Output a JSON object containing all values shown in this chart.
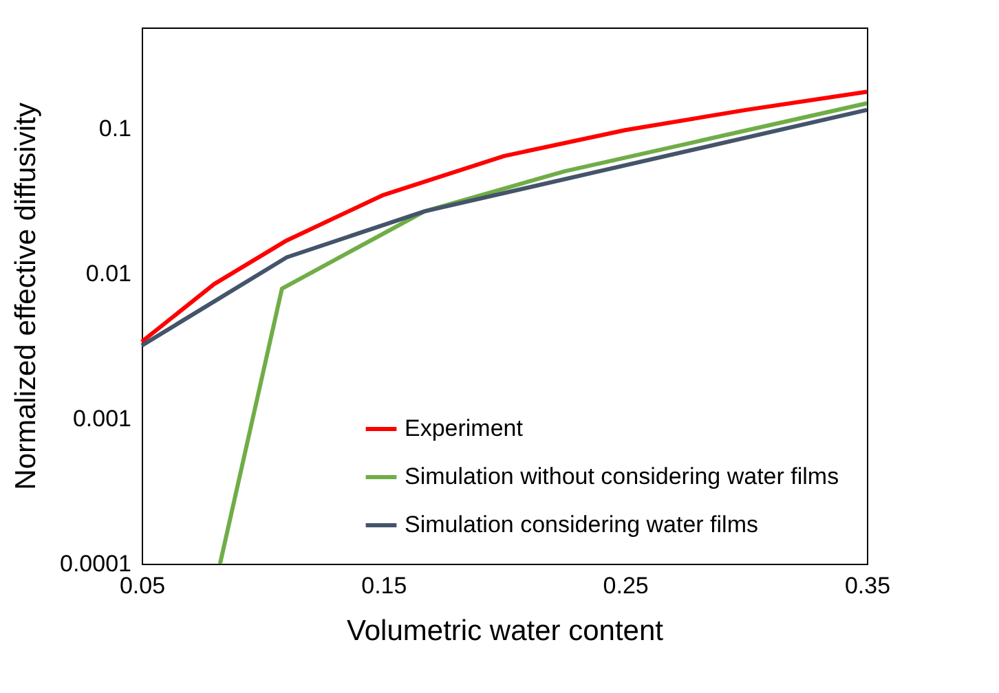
{
  "chart_data": {
    "type": "line",
    "xlabel": "Volumetric water content",
    "ylabel": "Normalized effective diffusivity",
    "log": "y",
    "grid": false,
    "legend": "bottom right",
    "marker": "none",
    "line_style": "solid",
    "xlim": [
      0.05,
      0.35
    ],
    "xticks": [
      0.05,
      0.15,
      0.25,
      0.35
    ],
    "ylim": [
      0.0001,
      0.5
    ],
    "yticks": [
      0.0001,
      0.001,
      0.01,
      0.1
    ],
    "series": [
      {
        "name": "Experiment",
        "color": "#ff0000",
        "x": [
          0.05,
          0.08,
          0.11,
          0.15,
          0.2,
          0.25,
          0.3,
          0.35
        ],
        "values": [
          0.0034,
          0.0085,
          0.017,
          0.035,
          0.065,
          0.098,
          0.135,
          0.18
        ]
      },
      {
        "name": "Simulation without considering water films",
        "color": "#70ad47",
        "x": [
          0.0824,
          0.108,
          0.167,
          0.225,
          0.35
        ],
        "values": [
          0.0001,
          0.0079,
          0.027,
          0.051,
          0.15
        ]
      },
      {
        "name": "Simulation considering water films",
        "color": "#44546a",
        "x": [
          0.05,
          0.11,
          0.167,
          0.35
        ],
        "values": [
          0.0032,
          0.013,
          0.027,
          0.135
        ]
      }
    ]
  }
}
